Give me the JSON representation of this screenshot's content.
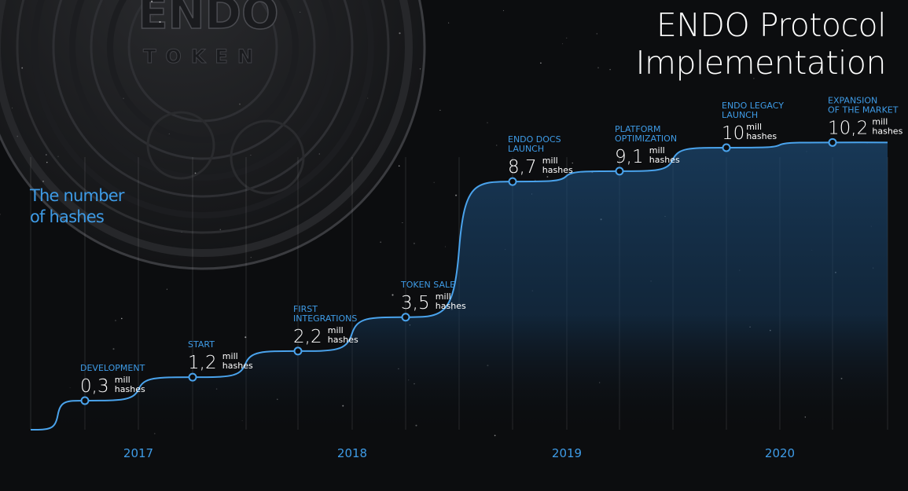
{
  "title_lines": [
    "ENDO Protocol",
    "Implementation"
  ],
  "ylabel_lines": [
    "The number",
    "of hashes"
  ],
  "coin": {
    "text": "ENDO",
    "sub": "TOKEN"
  },
  "colors": {
    "accent": "#3e9be6",
    "line": "#4aa3ec",
    "background": "#0c0d0f",
    "text": "#ffffff"
  },
  "chart_data": {
    "type": "area",
    "title": "ENDO Protocol Implementation",
    "ylabel": "The number of hashes",
    "unit": "mill hashes",
    "x_ticks": [
      "2017",
      "2018",
      "2019",
      "2020"
    ],
    "milestones": [
      {
        "label": [
          "DEVELOPMENT"
        ],
        "value": "0,3",
        "unit": [
          "mill",
          "hashes"
        ],
        "y": 0.3
      },
      {
        "label": [
          "START"
        ],
        "value": "1,2",
        "unit": [
          "mill",
          "hashes"
        ],
        "y": 1.2
      },
      {
        "label": [
          "FIRST",
          "INTEGRATIONS"
        ],
        "value": "2,2",
        "unit": [
          "mill",
          "hashes"
        ],
        "y": 2.2
      },
      {
        "label": [
          "TOKEN SALE"
        ],
        "value": "3,5",
        "unit": [
          "mill",
          "hashes"
        ],
        "y": 3.5
      },
      {
        "label": [
          "ENDO DOCS",
          "LAUNCH"
        ],
        "value": "8,7",
        "unit": [
          "mill",
          "hashes"
        ],
        "y": 8.7
      },
      {
        "label": [
          "PLATFORM",
          "OPTIMIZATION"
        ],
        "value": "9,1",
        "unit": [
          "mill",
          "hashes"
        ],
        "y": 9.1
      },
      {
        "label": [
          "ENDO LEGACY",
          "LAUNCH"
        ],
        "value": "10",
        "unit": [
          "mill",
          "hashes"
        ],
        "y": 10
      },
      {
        "label": [
          "EXPANSION",
          "OF THE MARKET"
        ],
        "value": "10,2",
        "unit": [
          "mill",
          "hashes"
        ],
        "y": 10.2
      }
    ]
  }
}
